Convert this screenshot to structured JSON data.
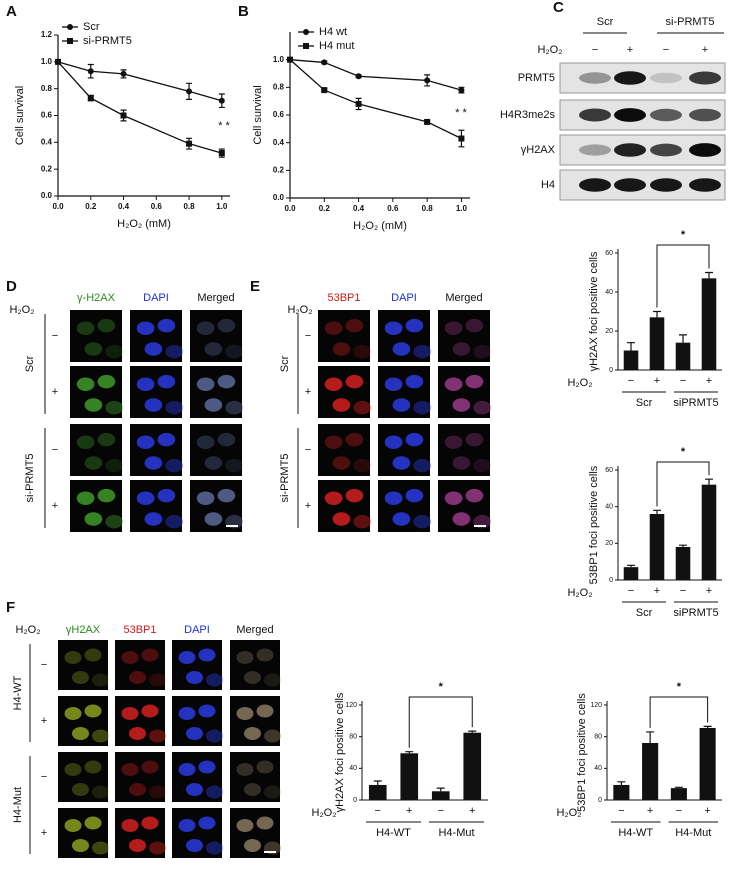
{
  "panel_labels": [
    "A",
    "B",
    "C",
    "D",
    "E",
    "F"
  ],
  "chart_data": [
    {
      "type": "line",
      "ylabel": "Cell survival",
      "xlabel": "H₂O₂ (mM)",
      "x": [
        0,
        0.2,
        0.4,
        0.8,
        1.0
      ],
      "xlim": [
        0,
        1.05
      ],
      "xticks": [
        {
          "value": 0,
          "label": "0.0"
        },
        0.2,
        0.4,
        0.6,
        0.8,
        {
          "value": 1,
          "label": "1.0"
        }
      ],
      "ylim": [
        0,
        1.2
      ],
      "yticks": [
        {
          "value": 0,
          "label": "0.0"
        },
        0.2,
        0.4,
        0.6,
        0.8,
        {
          "value": 1,
          "label": "1.0"
        },
        1.2
      ],
      "legend": "upper left",
      "series": [
        {
          "name": "Scr",
          "color": "#111111",
          "marker": "circle",
          "values": [
            1.0,
            0.93,
            0.91,
            0.78,
            0.71
          ],
          "errors": [
            0,
            0.05,
            0.03,
            0.06,
            0.05
          ]
        },
        {
          "name": "si-PRMT5",
          "color": "#111111",
          "marker": "square",
          "values": [
            1.0,
            0.73,
            0.6,
            0.39,
            0.32
          ],
          "errors": [
            0,
            0.02,
            0.04,
            0.04,
            0.03
          ]
        }
      ],
      "annotation": "* *"
    },
    {
      "type": "line",
      "ylabel": "Cell survival",
      "xlabel": "H₂O₂ (mM)",
      "x": [
        0,
        0.2,
        0.4,
        0.8,
        1.0
      ],
      "xlim": [
        0,
        1.05
      ],
      "xticks": [
        {
          "value": 0,
          "label": "0.0"
        },
        0.2,
        0.4,
        0.6,
        0.8,
        {
          "value": 1,
          "label": "1.0"
        }
      ],
      "ylim": [
        0,
        1.2
      ],
      "yticks": [
        {
          "value": 0,
          "label": "0.0"
        },
        0.2,
        0.4,
        0.6,
        0.8,
        {
          "value": 1,
          "label": "1.0"
        }
      ],
      "legend": "upper left",
      "series": [
        {
          "name": "H4 wt",
          "color": "#111111",
          "marker": "circle",
          "values": [
            1.0,
            0.98,
            0.88,
            0.85,
            0.78
          ],
          "errors": [
            0,
            0.01,
            0.01,
            0.04,
            0.02
          ]
        },
        {
          "name": "H4 mut",
          "color": "#111111",
          "marker": "square",
          "values": [
            1.0,
            0.78,
            0.68,
            0.55,
            0.43
          ],
          "errors": [
            0,
            0.01,
            0.04,
            0.01,
            0.06
          ]
        }
      ],
      "annotation": "* *"
    },
    {
      "type": "bar",
      "ylabel": "γH2AX foci positive cells",
      "treatment_label": "H₂O₂",
      "categories": [
        "−",
        "+",
        "−",
        "+"
      ],
      "groups": [
        "Scr",
        "siPRMT5"
      ],
      "values": [
        10,
        27,
        14,
        47
      ],
      "errors": [
        4,
        3,
        4,
        3
      ],
      "color": "#111111",
      "ylim": [
        0,
        60
      ],
      "yticks": [
        0,
        20,
        40,
        60
      ],
      "annotation": "*"
    },
    {
      "type": "bar",
      "ylabel": "53BP1 foci positive cells",
      "treatment_label": "H₂O₂",
      "categories": [
        "−",
        "+",
        "−",
        "+"
      ],
      "groups": [
        "Scr",
        "siPRMT5"
      ],
      "values": [
        7,
        36,
        18,
        52
      ],
      "errors": [
        1,
        2,
        1,
        3
      ],
      "color": "#111111",
      "ylim": [
        0,
        60
      ],
      "yticks": [
        0,
        20,
        40,
        60
      ],
      "annotation": "*"
    },
    {
      "type": "bar",
      "ylabel": "γH2AX foci positive cells",
      "treatment_label": "H₂O₂",
      "categories": [
        "−",
        "+",
        "−",
        "+"
      ],
      "groups": [
        "H4-WT",
        "H4-Mut"
      ],
      "values": [
        19,
        59,
        11,
        85
      ],
      "errors": [
        5,
        2,
        4,
        2
      ],
      "color": "#111111",
      "ylim": [
        0,
        120
      ],
      "yticks": [
        0,
        40,
        80,
        120
      ],
      "annotation": "*"
    },
    {
      "type": "bar",
      "ylabel": "53BP1 foci positive cells",
      "treatment_label": "H₂O₂",
      "categories": [
        "−",
        "+",
        "−",
        "+"
      ],
      "groups": [
        "H4-WT",
        "H4-Mut"
      ],
      "values": [
        19,
        72,
        15,
        91
      ],
      "errors": [
        4,
        14,
        1,
        2
      ],
      "color": "#111111",
      "ylim": [
        0,
        120
      ],
      "yticks": [
        0,
        40,
        80,
        120
      ],
      "annotation": "*"
    }
  ],
  "blot": {
    "groups": [
      "Scr",
      "si-PRMT5"
    ],
    "treatment": "H₂O₂",
    "lanes": [
      "−",
      "+",
      "−",
      "+"
    ],
    "rows": [
      "PRMT5",
      "H4R3me2s",
      "γH2AX",
      "H4"
    ]
  },
  "micrographs": [
    {
      "treatment": "H₂O₂",
      "channels": [
        "γ-H2AX",
        "DAPI",
        "Merged"
      ],
      "rows": [
        "−",
        "+",
        "−",
        "+"
      ],
      "groups": [
        "Scr",
        "si-PRMT5"
      ]
    },
    {
      "treatment": "H₂O₂",
      "channels": [
        "53BP1",
        "DAPI",
        "Merged"
      ],
      "rows": [
        "−",
        "+",
        "−",
        "+"
      ],
      "groups": [
        "Scr",
        "si-PRMT5"
      ]
    },
    {
      "treatment": "H₂O₂",
      "channels": [
        "γH2AX",
        "53BP1",
        "DAPI",
        "Merged"
      ],
      "rows": [
        "−",
        "+",
        "−",
        "+"
      ],
      "groups": [
        "H4-WT",
        "H4-Mut"
      ]
    }
  ]
}
